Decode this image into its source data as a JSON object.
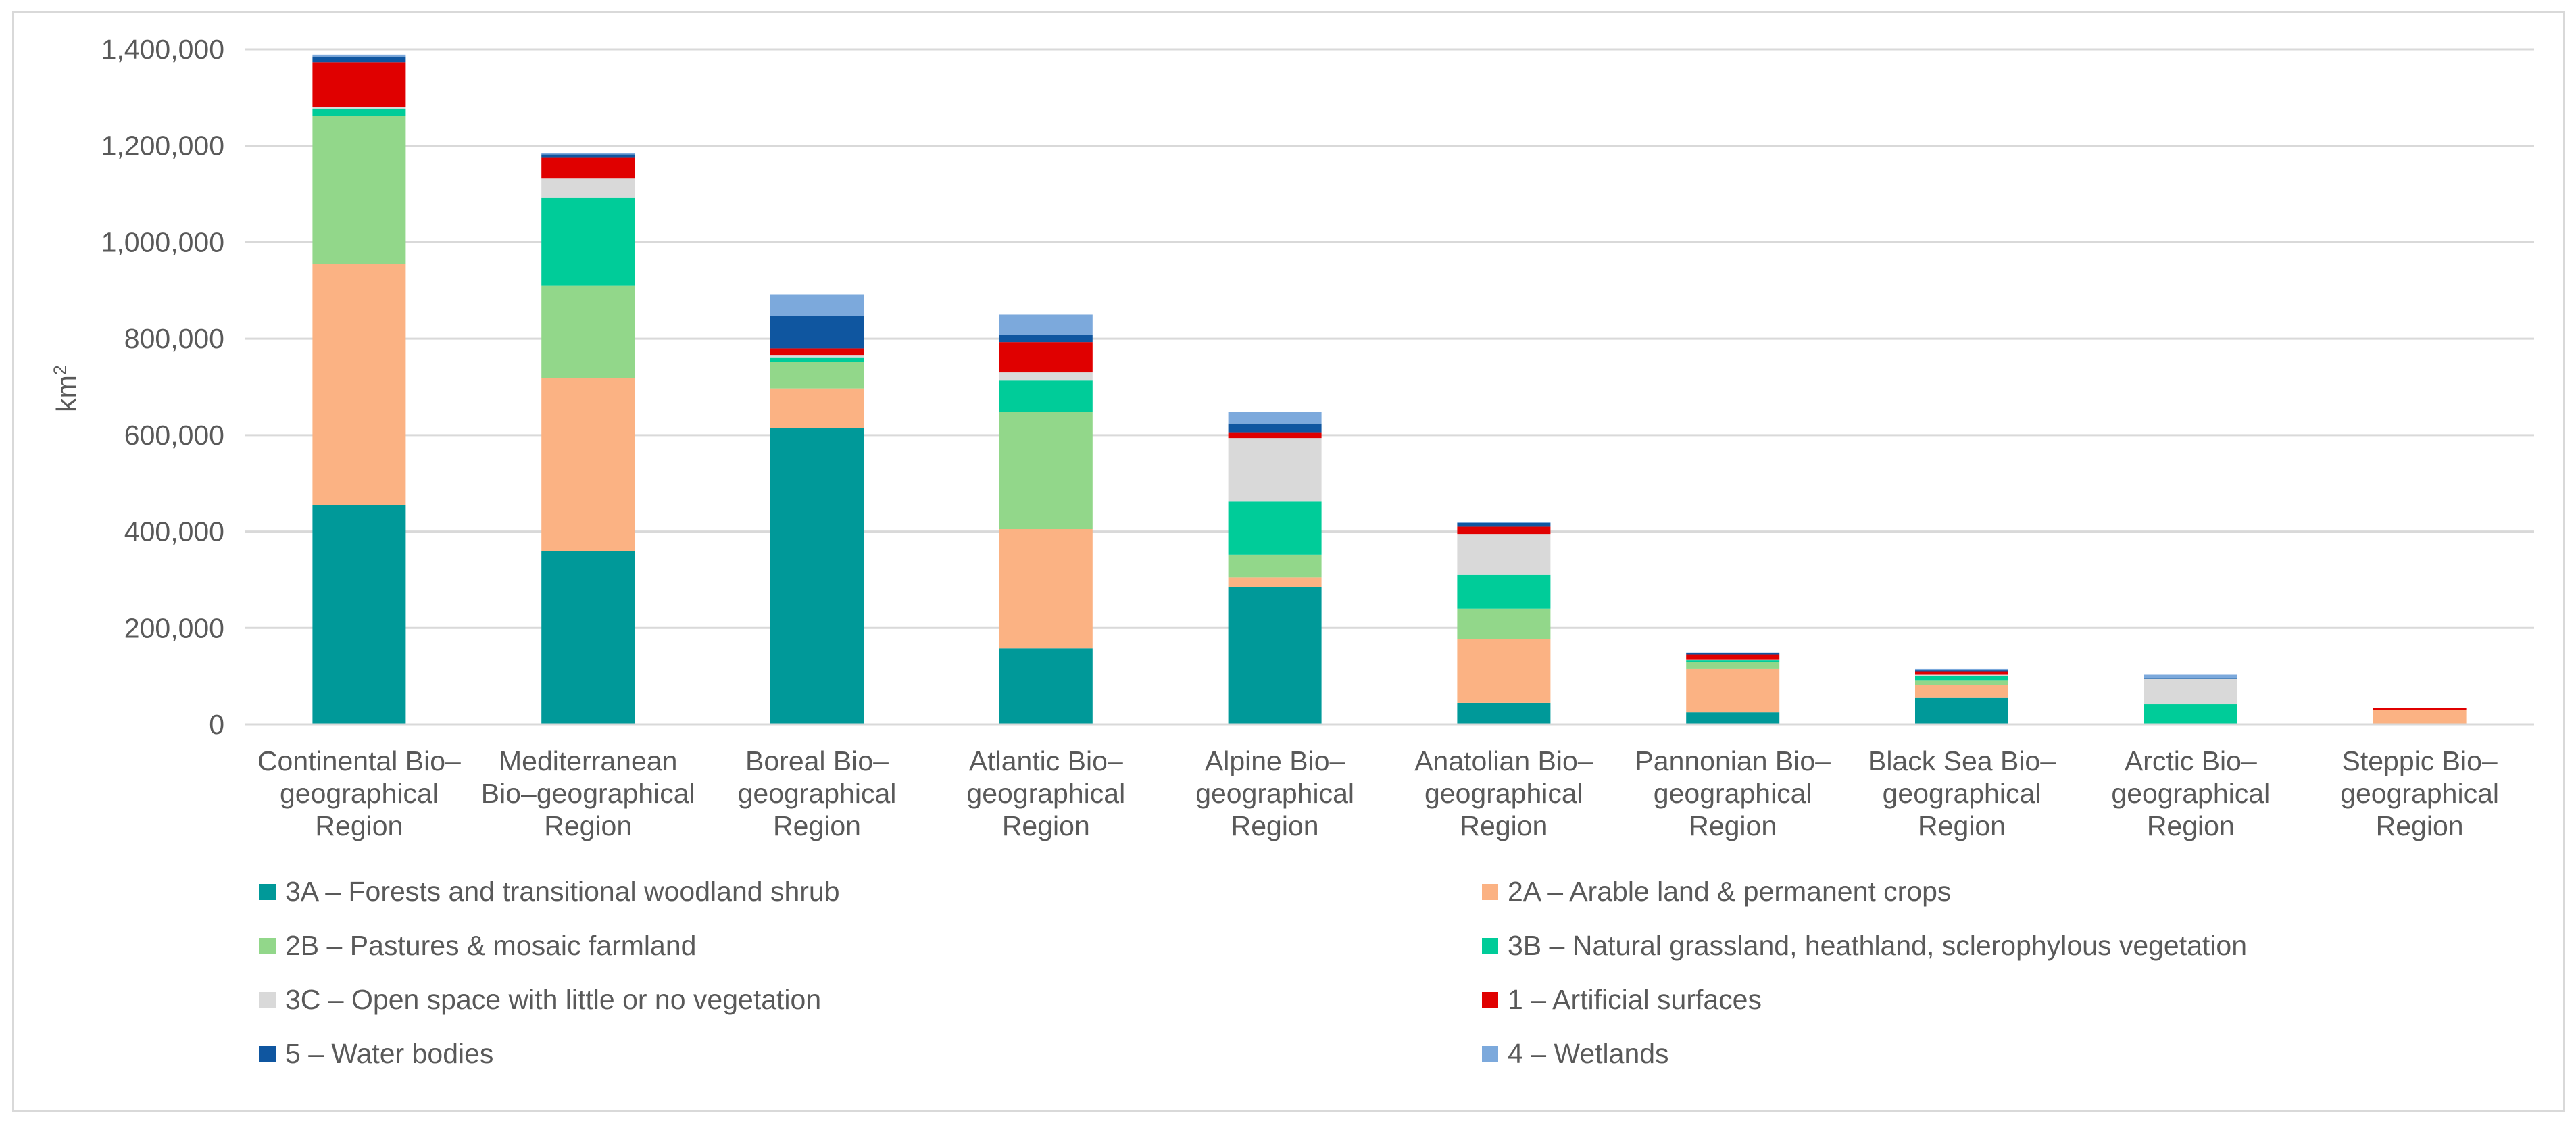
{
  "chart_data": {
    "type": "bar",
    "stacked": true,
    "title": "",
    "xlabel": "",
    "ylabel": "km",
    "ylabel_superscript": "2",
    "ylim": [
      0,
      1400000
    ],
    "yticks": [
      "0",
      "200,000",
      "400,000",
      "600,000",
      "800,000",
      "1,000,000",
      "1,200,000",
      "1,400,000"
    ],
    "ytick_values": [
      0,
      200000,
      400000,
      600000,
      800000,
      1000000,
      1200000,
      1400000
    ],
    "grid": true,
    "categories": [
      [
        "Continental Bio–",
        "geographical",
        "Region"
      ],
      [
        "Mediterranean",
        "Bio–geographical",
        "Region"
      ],
      [
        "Boreal Bio–",
        "geographical",
        "Region"
      ],
      [
        "Atlantic Bio–",
        "geographical",
        "Region"
      ],
      [
        "Alpine Bio–",
        "geographical",
        "Region"
      ],
      [
        "Anatolian Bio–",
        "geographical",
        "Region"
      ],
      [
        "Pannonian Bio–",
        "geographical",
        "Region"
      ],
      [
        "Black Sea Bio–",
        "geographical",
        "Region"
      ],
      [
        "Arctic Bio–",
        "geographical",
        "Region"
      ],
      [
        "Steppic Bio–",
        "geographical",
        "Region"
      ]
    ],
    "series": [
      {
        "name": "3A – Forests and transitional woodland shrub",
        "color": "#009999",
        "values": [
          455000,
          360000,
          615000,
          158000,
          285000,
          45000,
          25000,
          55000,
          0,
          0
        ]
      },
      {
        "name": "2A – Arable land & permanent crops",
        "color": "#FBB283",
        "values": [
          500000,
          358000,
          82000,
          247000,
          20000,
          132000,
          90000,
          27000,
          0,
          30000
        ]
      },
      {
        "name": "2B – Pastures & mosaic farmland",
        "color": "#92D78A",
        "values": [
          307000,
          192000,
          55000,
          243000,
          47000,
          63000,
          15000,
          10000,
          0,
          0
        ]
      },
      {
        "name": "3B – Natural grassland, heathland, sclerophylous vegetation",
        "color": "#00CC99",
        "values": [
          15000,
          182000,
          8000,
          65000,
          110000,
          70000,
          3000,
          8000,
          42000,
          0
        ]
      },
      {
        "name": "3C – Open space with little or no vegetation",
        "color": "#D9D9D9",
        "values": [
          3000,
          40000,
          5000,
          17000,
          132000,
          85000,
          2000,
          3000,
          52000,
          0
        ]
      },
      {
        "name": "1 – Artificial surfaces",
        "color": "#E00000",
        "values": [
          93000,
          43000,
          15000,
          63000,
          12000,
          15000,
          10000,
          7000,
          0,
          4000
        ]
      },
      {
        "name": "5 – Water bodies",
        "color": "#0F56A0",
        "values": [
          12000,
          7000,
          67000,
          15000,
          18000,
          8000,
          3000,
          2000,
          1000,
          0
        ]
      },
      {
        "name": "4 – Wetlands",
        "color": "#7CA9DC",
        "values": [
          4000,
          3000,
          45000,
          42000,
          24000,
          1000,
          1000,
          3000,
          8000,
          0
        ]
      }
    ],
    "legend_position": "bottom"
  }
}
